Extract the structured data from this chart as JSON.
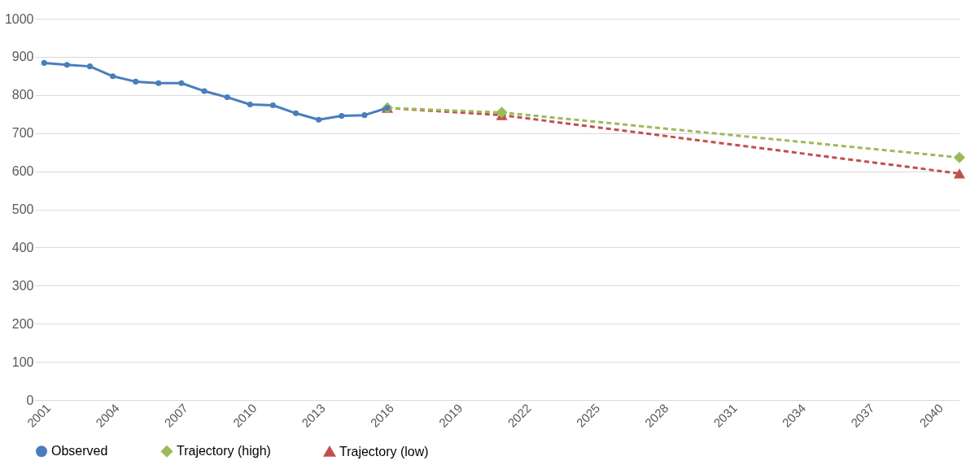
{
  "chart_data": {
    "type": "line",
    "x": [
      2001,
      2002,
      2003,
      2004,
      2005,
      2006,
      2007,
      2008,
      2009,
      2010,
      2011,
      2012,
      2013,
      2014,
      2015,
      2016
    ],
    "series": [
      {
        "name": "Observed",
        "color": "#4a7ebb",
        "marker": "circle",
        "line_style": "solid",
        "values": [
          884,
          879,
          875,
          849,
          835,
          831,
          831,
          810,
          794,
          775,
          773,
          752,
          735,
          745,
          747,
          766
        ]
      },
      {
        "name": "Trajectory (high)",
        "color": "#9bbb59",
        "marker": "diamond",
        "line_style": "dashed",
        "x": [
          2016,
          2021,
          2041
        ],
        "values": [
          766,
          754,
          636
        ]
      },
      {
        "name": "Trajectory (low)",
        "color": "#c0504d",
        "marker": "triangle",
        "line_style": "dashed",
        "x": [
          2016,
          2021,
          2041
        ],
        "values": [
          766,
          747,
          594
        ]
      }
    ],
    "xlim": [
      2000.6,
      2041
    ],
    "xticks": [
      2001,
      2004,
      2007,
      2010,
      2013,
      2016,
      2019,
      2022,
      2025,
      2028,
      2031,
      2034,
      2037,
      2040
    ],
    "ylim": [
      0,
      1000
    ],
    "yticks": [
      0,
      100,
      200,
      300,
      400,
      500,
      600,
      700,
      800,
      900,
      1000
    ],
    "grid": "y",
    "legend": "bottom"
  }
}
